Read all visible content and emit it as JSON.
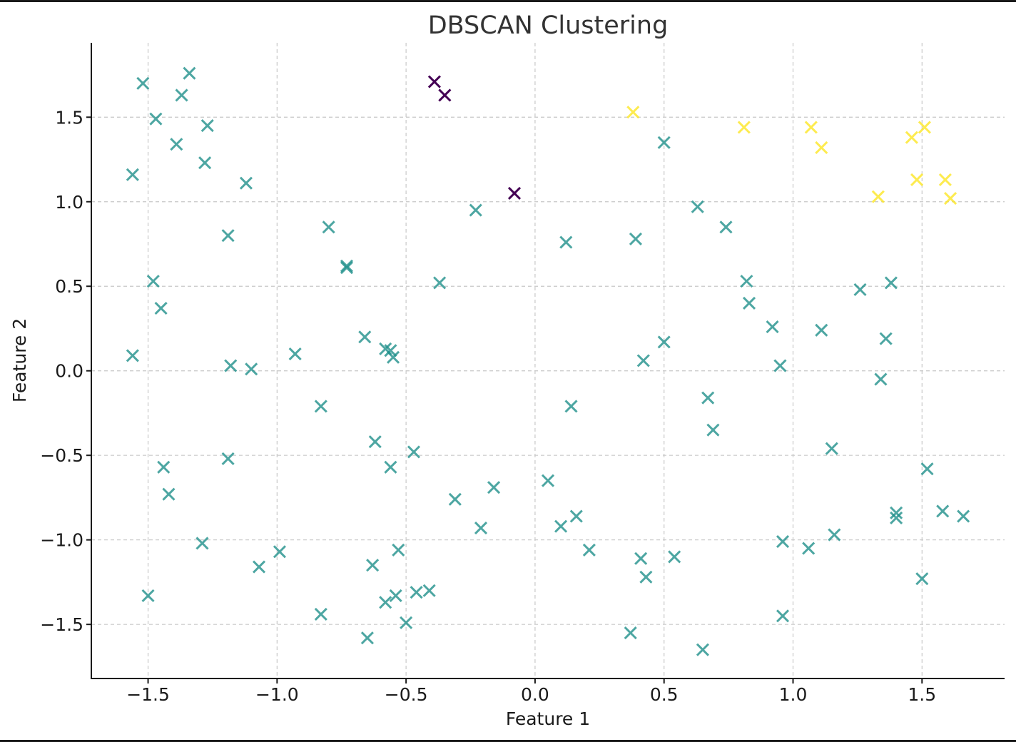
{
  "chart_data": {
    "type": "scatter",
    "title": "DBSCAN Clustering",
    "xlabel": "Feature 1",
    "ylabel": "Feature 2",
    "xlim": [
      -1.72,
      1.82
    ],
    "ylim": [
      -1.82,
      1.94
    ],
    "xticks": [
      -1.5,
      -1.0,
      -0.5,
      0.0,
      0.5,
      1.0,
      1.5
    ],
    "yticks": [
      -1.5,
      -1.0,
      -0.5,
      0.0,
      0.5,
      1.0,
      1.5
    ],
    "xtick_labels": [
      "−1.5",
      "−1.0",
      "−0.5",
      "0.0",
      "0.5",
      "1.0",
      "1.5"
    ],
    "ytick_labels": [
      "−1.5",
      "−1.0",
      "−0.5",
      "0.0",
      "0.5",
      "1.0",
      "1.5"
    ],
    "grid": true,
    "marker": "x",
    "colors": {
      "noise": "#440154",
      "cluster_0": "#21918c",
      "cluster_1": "#fde725"
    },
    "series": [
      {
        "cluster": "noise",
        "points": [
          [
            -0.39,
            1.71
          ],
          [
            -0.35,
            1.63
          ],
          [
            -0.08,
            1.05
          ]
        ]
      },
      {
        "cluster": "cluster_1",
        "points": [
          [
            0.38,
            1.53
          ],
          [
            0.81,
            1.44
          ],
          [
            1.07,
            1.44
          ],
          [
            1.11,
            1.32
          ],
          [
            1.46,
            1.38
          ],
          [
            1.51,
            1.44
          ],
          [
            1.33,
            1.03
          ],
          [
            1.48,
            1.13
          ],
          [
            1.59,
            1.13
          ],
          [
            1.61,
            1.02
          ]
        ]
      },
      {
        "cluster": "cluster_0",
        "points": [
          [
            -1.52,
            1.7
          ],
          [
            -1.34,
            1.76
          ],
          [
            -1.37,
            1.63
          ],
          [
            -1.47,
            1.49
          ],
          [
            -1.27,
            1.45
          ],
          [
            -1.39,
            1.34
          ],
          [
            -1.28,
            1.23
          ],
          [
            -1.56,
            1.16
          ],
          [
            -1.12,
            1.11
          ],
          [
            -1.19,
            0.8
          ],
          [
            -0.8,
            0.85
          ],
          [
            -0.73,
            0.62
          ],
          [
            -0.73,
            0.61
          ],
          [
            -0.37,
            0.52
          ],
          [
            -0.23,
            0.95
          ],
          [
            -1.48,
            0.53
          ],
          [
            -1.45,
            0.37
          ],
          [
            -1.56,
            0.09
          ],
          [
            -1.18,
            0.03
          ],
          [
            -1.1,
            0.01
          ],
          [
            -0.93,
            0.1
          ],
          [
            -0.66,
            0.2
          ],
          [
            -0.58,
            0.13
          ],
          [
            -0.56,
            0.12
          ],
          [
            -0.55,
            0.08
          ],
          [
            -0.83,
            -0.21
          ],
          [
            -0.62,
            -0.42
          ],
          [
            -0.47,
            -0.48
          ],
          [
            -0.56,
            -0.57
          ],
          [
            -1.44,
            -0.57
          ],
          [
            -1.42,
            -0.73
          ],
          [
            -1.19,
            -0.52
          ],
          [
            -0.31,
            -0.76
          ],
          [
            -0.16,
            -0.69
          ],
          [
            -0.21,
            -0.93
          ],
          [
            -1.29,
            -1.02
          ],
          [
            -0.99,
            -1.07
          ],
          [
            -1.07,
            -1.16
          ],
          [
            -0.53,
            -1.06
          ],
          [
            -0.63,
            -1.15
          ],
          [
            -1.5,
            -1.33
          ],
          [
            -0.83,
            -1.44
          ],
          [
            -0.58,
            -1.37
          ],
          [
            -0.54,
            -1.33
          ],
          [
            -0.46,
            -1.31
          ],
          [
            -0.41,
            -1.3
          ],
          [
            -0.5,
            -1.49
          ],
          [
            -0.65,
            -1.58
          ],
          [
            0.5,
            1.35
          ],
          [
            0.63,
            0.97
          ],
          [
            0.74,
            0.85
          ],
          [
            0.39,
            0.78
          ],
          [
            0.12,
            0.76
          ],
          [
            0.82,
            0.53
          ],
          [
            0.83,
            0.4
          ],
          [
            0.92,
            0.26
          ],
          [
            0.5,
            0.17
          ],
          [
            0.42,
            0.06
          ],
          [
            0.95,
            0.03
          ],
          [
            1.11,
            0.24
          ],
          [
            1.26,
            0.48
          ],
          [
            1.38,
            0.52
          ],
          [
            1.36,
            0.19
          ],
          [
            1.34,
            -0.05
          ],
          [
            0.14,
            -0.21
          ],
          [
            0.67,
            -0.16
          ],
          [
            0.69,
            -0.35
          ],
          [
            1.15,
            -0.46
          ],
          [
            1.52,
            -0.58
          ],
          [
            0.05,
            -0.65
          ],
          [
            0.1,
            -0.92
          ],
          [
            0.16,
            -0.86
          ],
          [
            0.21,
            -1.06
          ],
          [
            0.41,
            -1.11
          ],
          [
            0.43,
            -1.22
          ],
          [
            0.54,
            -1.1
          ],
          [
            0.96,
            -1.01
          ],
          [
            1.06,
            -1.05
          ],
          [
            1.16,
            -0.97
          ],
          [
            1.4,
            -0.84
          ],
          [
            1.4,
            -0.87
          ],
          [
            1.58,
            -0.83
          ],
          [
            1.66,
            -0.86
          ],
          [
            1.5,
            -1.23
          ],
          [
            0.96,
            -1.45
          ],
          [
            0.37,
            -1.55
          ],
          [
            0.65,
            -1.65
          ]
        ]
      }
    ]
  }
}
